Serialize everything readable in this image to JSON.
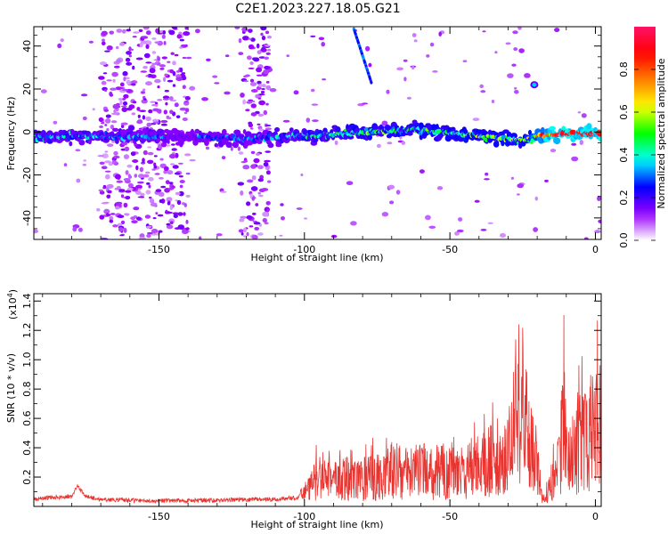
{
  "chart_data": [
    {
      "type": "heatmap",
      "title": "C2E1.2023.227.18.05.G21",
      "xlabel": "Height of straight line (km)",
      "ylabel": "Frequency (Hz)",
      "xlim": [
        -193,
        2
      ],
      "ylim": [
        -50,
        49
      ],
      "x_ticks": [
        -150,
        -100,
        -50,
        0
      ],
      "x_tick_labels": [
        "-150",
        "-100",
        "-50",
        "0"
      ],
      "y_ticks": [
        -40,
        -20,
        0,
        20,
        40
      ],
      "y_tick_labels": [
        "-40",
        "-20",
        "0",
        "20",
        "40"
      ],
      "colorbar": {
        "label": "Normalized spectral amplitude",
        "range": [
          0,
          1
        ],
        "ticks": [
          0.0,
          0.2,
          0.4,
          0.6,
          0.8
        ],
        "tick_labels": [
          "0.0",
          "0.2",
          "0.4",
          "0.6",
          "0.8"
        ],
        "colormap": [
          "#ffffff",
          "#9900ff",
          "#0000ff",
          "#00ffff",
          "#00ff00",
          "#ffff00",
          "#ff8000",
          "#ff0000",
          "#ff1166"
        ]
      },
      "ridge": {
        "description_points_x": [
          -193,
          -150,
          -120,
          -100,
          -80,
          -60,
          -40,
          -25,
          -15,
          0
        ],
        "frequency_hz": [
          -2,
          -2,
          -3,
          -2,
          0,
          1,
          -2,
          -4,
          -1,
          -1
        ],
        "peak_amplitude": [
          0.45,
          0.35,
          0.35,
          0.45,
          0.55,
          0.55,
          0.6,
          0.6,
          0.95,
          0.95
        ]
      },
      "features": [
        {
          "kind": "streak",
          "x": [
            -83,
            -77
          ],
          "y": [
            48,
            23
          ],
          "amplitude": 0.3
        },
        {
          "kind": "blob",
          "x": -21,
          "y": 22,
          "amplitude": 0.35
        },
        {
          "kind": "scatter",
          "x": [
            -170,
            -140
          ],
          "amplitude": 0.15
        },
        {
          "kind": "scatter",
          "x": [
            -122,
            -112
          ],
          "amplitude": 0.15
        }
      ]
    },
    {
      "type": "line",
      "title": "",
      "xlabel": "Height of straight line (km)",
      "ylabel": "SNR (10 * v/v)",
      "y_multiplier_label": "(x10",
      "y_multiplier_exp": "4",
      "xlim": [
        -193,
        2
      ],
      "ylim": [
        0,
        14500
      ],
      "x_ticks": [
        -150,
        -100,
        -50,
        0
      ],
      "x_tick_labels": [
        "-150",
        "-100",
        "-50",
        "0"
      ],
      "y_ticks": [
        2000,
        4000,
        6000,
        8000,
        10000,
        12000,
        14000
      ],
      "y_tick_labels": [
        "0.2",
        "0.4",
        "0.6",
        "0.8",
        "1.0",
        "1.2",
        "1.4"
      ],
      "line_color": "#e8332f",
      "series": [
        {
          "x": [
            -193,
            -180,
            -178,
            -175,
            -170,
            -150,
            -130,
            -110,
            -102,
            -100,
            -95,
            -90,
            -85,
            -80,
            -75,
            -70,
            -65,
            -60,
            -55,
            -50,
            -45,
            -40,
            -35,
            -30,
            -28,
            -26,
            -25,
            -22,
            -20,
            -18,
            -15,
            -12,
            -11,
            -10,
            -8,
            -5,
            -3,
            -1,
            1,
            2
          ],
          "y": [
            500,
            700,
            1400,
            700,
            450,
            380,
            420,
            500,
            600,
            1800,
            3500,
            3000,
            4000,
            3500,
            3500,
            4500,
            4000,
            4500,
            4000,
            4500,
            4000,
            5500,
            6000,
            6500,
            12500,
            9000,
            11000,
            7500,
            4500,
            700,
            3000,
            5500,
            14400,
            7000,
            5500,
            9000,
            7500,
            10000,
            8500,
            12500
          ]
        }
      ]
    }
  ]
}
